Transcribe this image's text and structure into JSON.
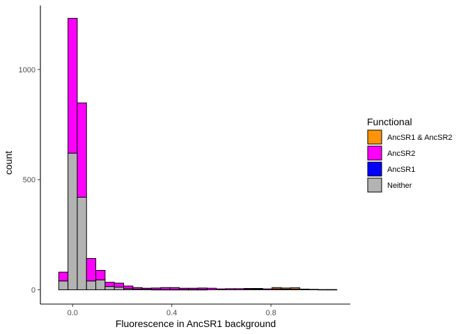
{
  "chart_data": {
    "type": "bar",
    "stacked": true,
    "xlabel": "Fluorescence in AncSR1 background",
    "ylabel": "count",
    "xlim": [
      -0.13,
      1.12
    ],
    "ylim": [
      -65,
      1290
    ],
    "x_ticks": [
      {
        "value": 0.0,
        "label": "0.0"
      },
      {
        "value": 0.4,
        "label": "0.4"
      },
      {
        "value": 0.8,
        "label": "0.8"
      }
    ],
    "y_ticks": [
      {
        "value": 0,
        "label": "0"
      },
      {
        "value": 500,
        "label": "500"
      },
      {
        "value": 1000,
        "label": "1000"
      }
    ],
    "grid": false,
    "legend": {
      "title": "Functional",
      "position": "right",
      "entries": [
        {
          "label": "AncSR1 & AncSR2",
          "color": "#FF9408"
        },
        {
          "label": "AncSR2",
          "color": "#FF00FF"
        },
        {
          "label": "AncSR1",
          "color": "#0000FF"
        },
        {
          "label": "Neither",
          "color": "#B3B3B3"
        }
      ]
    },
    "bin_width": 0.0374,
    "bin_centers": [
      -0.0374,
      0.0,
      0.0374,
      0.0748,
      0.1122,
      0.1496,
      0.187,
      0.2244,
      0.2618,
      0.2992,
      0.3366,
      0.374,
      0.4114,
      0.4488,
      0.4862,
      0.5236,
      0.561,
      0.5984,
      0.6358,
      0.6732,
      0.7106,
      0.748,
      0.7854,
      0.8228,
      0.8602,
      0.8976,
      0.935,
      0.9724,
      1.0098,
      1.0472
    ],
    "stack_order": [
      "Neither",
      "AncSR1",
      "AncSR2",
      "AncSR1 & AncSR2"
    ],
    "series": [
      {
        "name": "Neither",
        "color": "#B3B3B3",
        "values": [
          40,
          620,
          420,
          40,
          45,
          15,
          12,
          5,
          3,
          2,
          1,
          1,
          1,
          1,
          1,
          1,
          0,
          0,
          0,
          0,
          0,
          0,
          0,
          0,
          0,
          0,
          0,
          0,
          0,
          0
        ]
      },
      {
        "name": "AncSR1",
        "color": "#0000FF",
        "values": [
          0,
          0,
          0,
          0,
          0,
          0,
          0,
          0,
          0,
          0,
          0,
          0,
          0,
          0,
          0,
          0,
          0,
          0,
          0,
          0,
          0,
          0,
          0,
          0,
          0,
          0,
          0,
          0,
          0,
          0
        ]
      },
      {
        "name": "AncSR2",
        "color": "#FF00FF",
        "values": [
          40,
          612,
          428,
          102,
          43,
          19,
          18,
          12,
          7,
          5,
          7,
          9,
          9,
          6,
          6,
          7,
          7,
          4,
          5,
          5,
          4,
          3,
          4,
          4,
          3,
          3,
          3,
          2,
          1,
          1
        ]
      },
      {
        "name": "AncSR1 & AncSR2",
        "color": "#FF9408",
        "values": [
          0,
          0,
          0,
          0,
          0,
          0,
          0,
          0,
          0,
          0,
          0,
          0,
          0,
          0,
          0,
          0,
          0,
          0,
          0,
          0,
          2,
          3,
          0,
          6,
          5,
          6,
          0,
          0,
          0,
          0
        ]
      }
    ]
  }
}
